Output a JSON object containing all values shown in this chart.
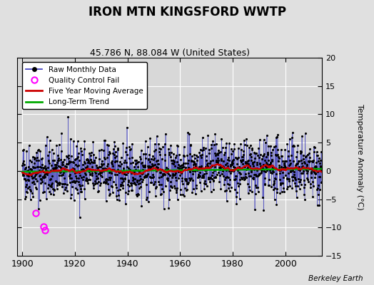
{
  "title": "IRON MTN KINGSFORD WWTP",
  "subtitle": "45.786 N, 88.084 W (United States)",
  "ylabel": "Temperature Anomaly (°C)",
  "attribution": "Berkeley Earth",
  "xlim": [
    1898,
    2014
  ],
  "ylim": [
    -15,
    20
  ],
  "yticks": [
    -15,
    -10,
    -5,
    0,
    5,
    10,
    15,
    20
  ],
  "xticks": [
    1900,
    1920,
    1940,
    1960,
    1980,
    2000
  ],
  "bg_color": "#e0e0e0",
  "plot_bg_color": "#d8d8d8",
  "grid_color": "#ffffff",
  "raw_line_color": "#3333bb",
  "raw_dot_color": "#000000",
  "moving_avg_color": "#cc0000",
  "trend_color": "#00aa00",
  "qc_fail_color": "#ff00ff",
  "seed": 42,
  "n_years": 114,
  "start_year": 1900,
  "noise_std": 2.5
}
